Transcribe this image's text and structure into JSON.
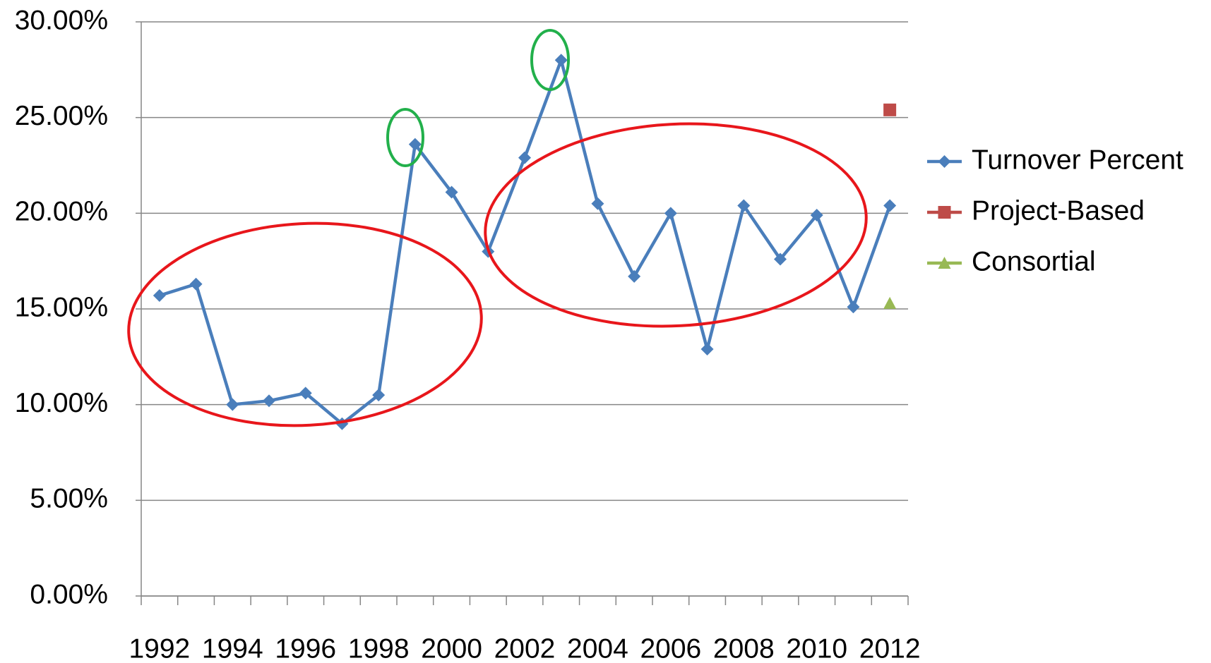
{
  "chart_data": {
    "type": "line",
    "categories": [
      "1992",
      null,
      "1994",
      null,
      "1996",
      null,
      "1998",
      null,
      "2000",
      null,
      "2002",
      null,
      "2004",
      null,
      "2006",
      null,
      "2008",
      null,
      "2010",
      null,
      "2012"
    ],
    "series": [
      {
        "name": "Turnover Percent",
        "color": "#4a7ebb",
        "marker": "diamond",
        "values": [
          15.7,
          16.3,
          10.0,
          10.2,
          10.6,
          9.0,
          10.5,
          23.6,
          21.1,
          18.0,
          22.9,
          28.0,
          20.5,
          16.7,
          20.0,
          12.9,
          20.4,
          17.6,
          19.9,
          15.1,
          20.4
        ]
      },
      {
        "name": "Project-Based",
        "color": "#be4b48",
        "marker": "square",
        "values": [
          null,
          null,
          null,
          null,
          null,
          null,
          null,
          null,
          null,
          null,
          null,
          null,
          null,
          null,
          null,
          null,
          null,
          null,
          null,
          null,
          25.4
        ]
      },
      {
        "name": "Consortial",
        "color": "#98b954",
        "marker": "triangle",
        "values": [
          null,
          null,
          null,
          null,
          null,
          null,
          null,
          null,
          null,
          null,
          null,
          null,
          null,
          null,
          null,
          null,
          null,
          null,
          null,
          null,
          15.3
        ]
      }
    ],
    "ylim": [
      0,
      30
    ],
    "yticks": [
      {
        "value": 0,
        "label": "0.00%"
      },
      {
        "value": 5,
        "label": "5.00%"
      },
      {
        "value": 10,
        "label": "10.00%"
      },
      {
        "value": 15,
        "label": "15.00%"
      },
      {
        "value": 20,
        "label": "20.00%"
      },
      {
        "value": 25,
        "label": "25.00%"
      },
      {
        "value": 30,
        "label": "30.00%"
      }
    ],
    "grid": true,
    "legend": "right"
  }
}
